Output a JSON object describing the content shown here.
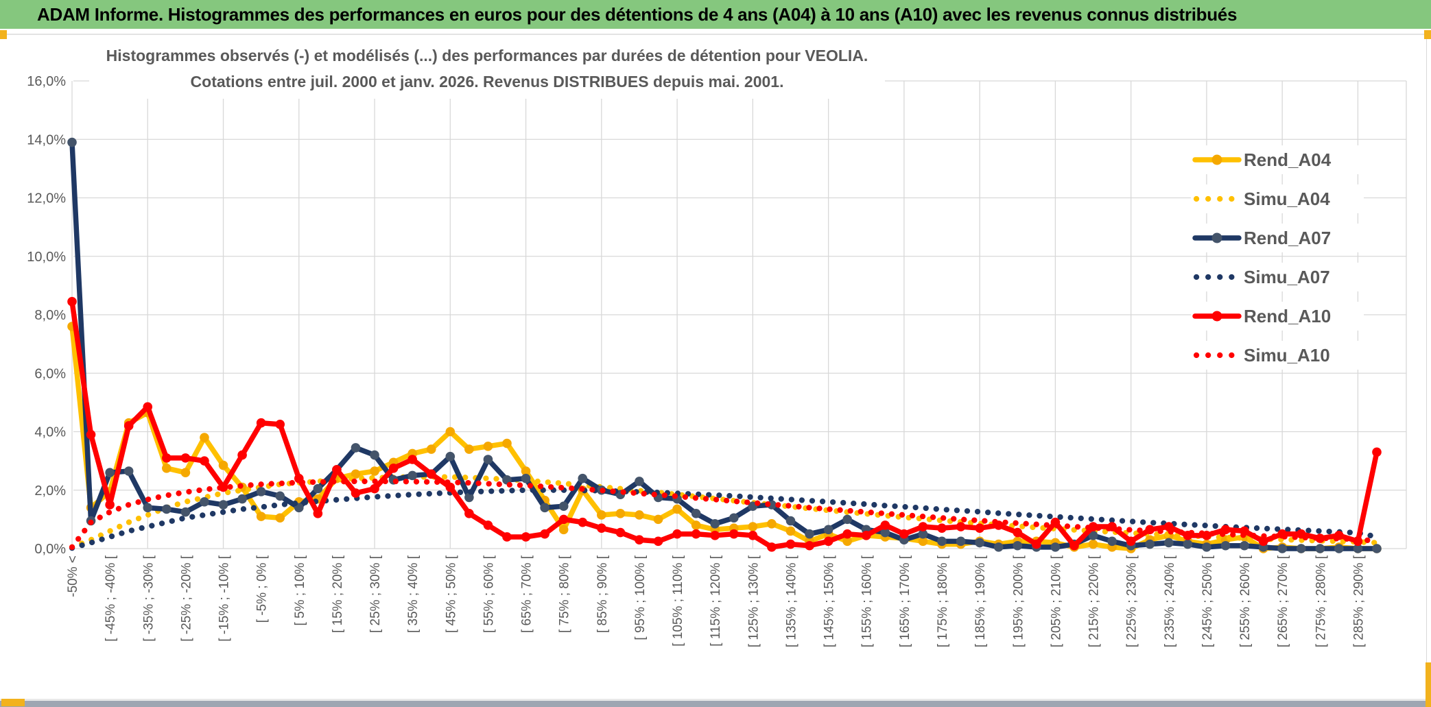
{
  "window": {
    "title": "ADAM Informe. Histogrammes des performances en euros pour des détentions de 4 ans (A04) à 10 ans (A10) avec les revenus connus distribués",
    "title_bar_color": "#85C77E",
    "accent_yellow": "#F2B21D",
    "bottom_bar_color": "#9EA6B2"
  },
  "chart_data": {
    "type": "line",
    "title": "Histogrammes observés (-) et modélisés (...) des performances par durées de détention pour VEOLIA.",
    "subtitle": "Cotations entre juil. 2000 et janv. 2026. Revenus DISTRIBUES depuis mai. 2001.",
    "xlabel": "",
    "ylabel": "",
    "ylim": [
      0,
      16
    ],
    "y_tick_step": 2,
    "y_tick_labels": [
      "0,0%",
      "2,0%",
      "4,0%",
      "6,0%",
      "8,0%",
      "10,0%",
      "12,0%",
      "14,0%",
      "16,0%"
    ],
    "grid": true,
    "legend_position": "upper right",
    "layout": {
      "grid_color": "#D8D8D8",
      "label_color": "#595959",
      "x_gridline_every_n_categories": 4,
      "values_unit": "percent"
    },
    "categories": [
      "-50% <",
      "",
      "[ -45% ; -40% [",
      "",
      "[ -35% ; -30% [",
      "",
      "[ -25% ; -20% [",
      "",
      "[ -15% ; -10% [",
      "",
      "[ -5% ; 0% [",
      "",
      "[ 5% ; 10% [",
      "",
      "[ 15% ; 20% [",
      "",
      "[ 25% ; 30% [",
      "",
      "[ 35% ; 40% [",
      "",
      "[ 45% ; 50% [",
      "",
      "[ 55% ; 60% [",
      "",
      "[ 65% ; 70% [",
      "",
      "[ 75% ; 80% [",
      "",
      "[ 85% ; 90% [",
      "",
      "[ 95% ; 100% [",
      "",
      "[ 105% ; 110% [",
      "",
      "[ 115% ; 120% [",
      "",
      "[ 125% ; 130% [",
      "",
      "[ 135% ; 140% [",
      "",
      "[ 145% ; 150% [",
      "",
      "[ 155% ; 160% [",
      "",
      "[ 165% ; 170% [",
      "",
      "[ 175% ; 180% [",
      "",
      "[ 185% ; 190% [",
      "",
      "[ 195% ; 200% [",
      "",
      "[ 205% ; 210% [",
      "",
      "[ 215% ; 220% [",
      "",
      "[ 225% ; 230% [",
      "",
      "[ 235% ; 240% [",
      "",
      "[ 245% ; 250% [",
      "",
      "[ 255% ; 260% [",
      "",
      "[ 265% ; 270% [",
      "",
      "[ 275% ; 280% [",
      "",
      "[ 285% ; 290% [",
      ""
    ],
    "series": [
      {
        "name": "Rend_A04",
        "style": "solid",
        "color": "#FFC000",
        "marker_color": "#F5A800",
        "values": [
          7.6,
          1.4,
          1.95,
          4.3,
          4.65,
          2.75,
          2.6,
          3.8,
          2.85,
          2.1,
          1.1,
          1.05,
          1.6,
          1.7,
          2.4,
          2.55,
          2.65,
          2.95,
          3.25,
          3.4,
          4.0,
          3.4,
          3.5,
          3.6,
          2.65,
          1.65,
          0.65,
          2.0,
          1.15,
          1.2,
          1.15,
          1.0,
          1.35,
          0.8,
          0.65,
          0.7,
          0.75,
          0.85,
          0.6,
          0.25,
          0.5,
          0.25,
          0.45,
          0.4,
          0.35,
          0.25,
          0.15,
          0.15,
          0.25,
          0.15,
          0.25,
          0.25,
          0.2,
          0.05,
          0.15,
          0.05,
          0.0,
          0.3,
          0.45,
          0.25,
          0.15,
          0.3,
          0.4,
          0.0,
          0.05,
          0.0,
          0.0,
          0.05,
          0.0,
          0.0
        ]
      },
      {
        "name": "Simu_A04",
        "style": "dotted",
        "color": "#FFC000",
        "marker_color": "#FFC000",
        "values": [
          0.05,
          0.3,
          0.6,
          0.9,
          1.15,
          1.4,
          1.6,
          1.75,
          1.9,
          2.0,
          2.1,
          2.2,
          2.25,
          2.3,
          2.35,
          2.4,
          2.42,
          2.44,
          2.45,
          2.45,
          2.45,
          2.43,
          2.4,
          2.37,
          2.33,
          2.28,
          2.23,
          2.17,
          2.11,
          2.05,
          1.98,
          1.92,
          1.85,
          1.78,
          1.71,
          1.64,
          1.57,
          1.5,
          1.44,
          1.37,
          1.31,
          1.25,
          1.19,
          1.13,
          1.07,
          1.02,
          0.96,
          0.91,
          0.86,
          0.81,
          0.77,
          0.72,
          0.68,
          0.64,
          0.6,
          0.57,
          0.53,
          0.5,
          0.47,
          0.44,
          0.41,
          0.38,
          0.36,
          0.33,
          0.31,
          0.29,
          0.27,
          0.25,
          0.23,
          0.2
        ]
      },
      {
        "name": "Rend_A07",
        "style": "solid",
        "color": "#1F3864",
        "marker_color": "#44546A",
        "values": [
          13.9,
          0.95,
          2.6,
          2.65,
          1.4,
          1.35,
          1.25,
          1.6,
          1.5,
          1.7,
          1.95,
          1.8,
          1.4,
          2.05,
          2.7,
          3.45,
          3.2,
          2.35,
          2.5,
          2.55,
          3.15,
          1.75,
          3.05,
          2.35,
          2.4,
          1.4,
          1.45,
          2.4,
          2.0,
          1.85,
          2.3,
          1.75,
          1.7,
          1.2,
          0.85,
          1.05,
          1.45,
          1.5,
          0.95,
          0.5,
          0.65,
          1.0,
          0.65,
          0.55,
          0.3,
          0.5,
          0.25,
          0.25,
          0.2,
          0.05,
          0.1,
          0.05,
          0.05,
          0.15,
          0.45,
          0.25,
          0.1,
          0.15,
          0.2,
          0.15,
          0.05,
          0.1,
          0.1,
          0.05,
          0.0,
          0.0,
          0.0,
          0.0,
          0.0,
          0.0
        ]
      },
      {
        "name": "Simu_A07",
        "style": "dotted",
        "color": "#1F3864",
        "marker_color": "#1F3864",
        "values": [
          0.02,
          0.2,
          0.4,
          0.6,
          0.75,
          0.9,
          1.05,
          1.15,
          1.25,
          1.35,
          1.42,
          1.5,
          1.56,
          1.62,
          1.67,
          1.72,
          1.77,
          1.81,
          1.85,
          1.88,
          1.91,
          1.94,
          1.96,
          1.98,
          2.0,
          2.0,
          2.0,
          1.99,
          1.98,
          1.96,
          1.94,
          1.92,
          1.89,
          1.86,
          1.83,
          1.8,
          1.76,
          1.72,
          1.68,
          1.64,
          1.6,
          1.56,
          1.52,
          1.47,
          1.43,
          1.39,
          1.34,
          1.3,
          1.26,
          1.21,
          1.17,
          1.13,
          1.09,
          1.05,
          1.01,
          0.97,
          0.93,
          0.89,
          0.86,
          0.82,
          0.79,
          0.75,
          0.72,
          0.69,
          0.66,
          0.63,
          0.6,
          0.57,
          0.54,
          0.4
        ]
      },
      {
        "name": "Rend_A10",
        "style": "solid",
        "color": "#FF0000",
        "marker_color": "#FF0000",
        "values": [
          8.45,
          3.9,
          1.5,
          4.2,
          4.85,
          3.1,
          3.1,
          3.0,
          2.1,
          3.2,
          4.3,
          4.25,
          2.4,
          1.2,
          2.7,
          1.9,
          2.05,
          2.75,
          3.05,
          2.55,
          2.1,
          1.2,
          0.8,
          0.4,
          0.4,
          0.5,
          1.0,
          0.9,
          0.7,
          0.55,
          0.3,
          0.25,
          0.5,
          0.5,
          0.45,
          0.5,
          0.45,
          0.05,
          0.15,
          0.1,
          0.25,
          0.5,
          0.45,
          0.8,
          0.5,
          0.75,
          0.7,
          0.75,
          0.7,
          0.8,
          0.55,
          0.15,
          0.9,
          0.1,
          0.75,
          0.75,
          0.25,
          0.65,
          0.75,
          0.45,
          0.45,
          0.65,
          0.6,
          0.25,
          0.5,
          0.5,
          0.35,
          0.45,
          0.25,
          3.3
        ]
      },
      {
        "name": "Simu_A10",
        "style": "dotted",
        "color": "#FF0000",
        "marker_color": "#FF0000",
        "values": [
          0.05,
          0.9,
          1.25,
          1.5,
          1.68,
          1.82,
          1.93,
          2.02,
          2.09,
          2.15,
          2.2,
          2.23,
          2.26,
          2.28,
          2.29,
          2.3,
          2.3,
          2.3,
          2.29,
          2.28,
          2.27,
          2.25,
          2.22,
          2.19,
          2.16,
          2.12,
          2.08,
          2.04,
          1.99,
          1.94,
          1.89,
          1.84,
          1.79,
          1.73,
          1.68,
          1.62,
          1.57,
          1.51,
          1.46,
          1.4,
          1.35,
          1.3,
          1.25,
          1.2,
          1.15,
          1.1,
          1.05,
          1.0,
          0.96,
          0.91,
          0.87,
          0.83,
          0.79,
          0.75,
          0.71,
          0.68,
          0.64,
          0.61,
          0.58,
          0.55,
          0.52,
          0.49,
          0.46,
          0.43,
          0.41,
          0.38,
          0.36,
          0.34,
          0.32,
          0.25
        ]
      }
    ]
  }
}
